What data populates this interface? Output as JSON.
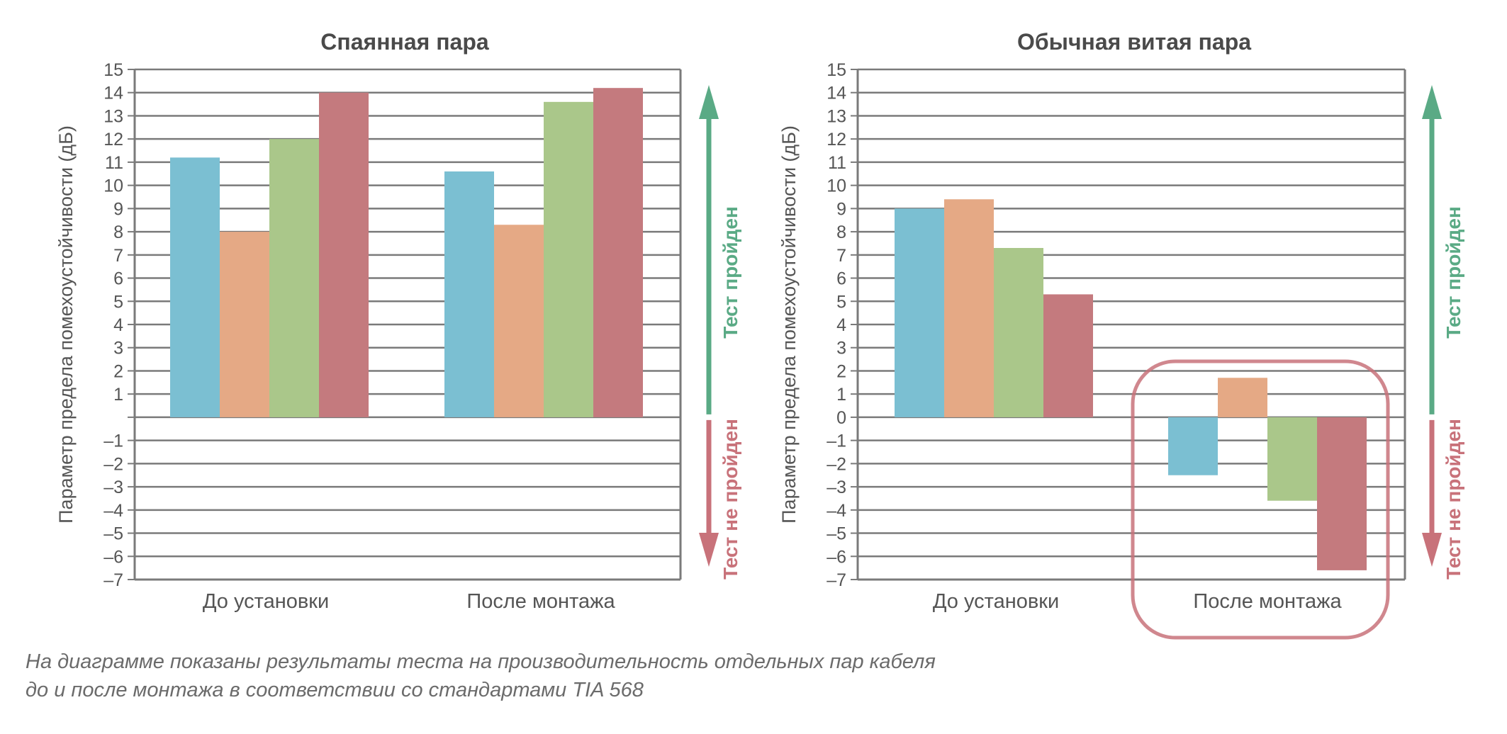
{
  "chart_data": [
    {
      "type": "bar",
      "title": "Спаянная пара",
      "ylabel": "Параметр предела помехоустойчивости (дБ)",
      "categories": [
        "До установки",
        "После монтажа"
      ],
      "ylim": [
        -7,
        15
      ],
      "yticks": [
        15,
        14,
        13,
        12,
        11,
        10,
        9,
        8,
        7,
        6,
        5,
        4,
        3,
        2,
        1,
        "",
        "–1",
        "–2",
        "–3",
        "–4",
        "–5",
        "–6",
        "–7"
      ],
      "grid": true,
      "series": [
        {
          "color": "#7bbfd2",
          "values": [
            11.2,
            10.6
          ]
        },
        {
          "color": "#e5a985",
          "values": [
            8.0,
            8.3
          ]
        },
        {
          "color": "#aac78a",
          "values": [
            12.0,
            13.6
          ]
        },
        {
          "color": "#c47a7e",
          "values": [
            14.0,
            14.2
          ]
        }
      ],
      "pass_label": "Тест пройден",
      "fail_label": "Тест не пройден"
    },
    {
      "type": "bar",
      "title": "Обычная витая пара",
      "ylabel": "Параметр предела помехоустойчивости (дБ)",
      "categories": [
        "До установки",
        "После монтажа"
      ],
      "ylim": [
        -7,
        15
      ],
      "yticks": [
        15,
        14,
        13,
        12,
        11,
        10,
        9,
        8,
        7,
        6,
        5,
        4,
        3,
        2,
        1,
        0,
        "–1",
        "–2",
        "–3",
        "–4",
        "–5",
        "–6",
        "–7"
      ],
      "grid": true,
      "series": [
        {
          "color": "#7bbfd2",
          "values": [
            9.0,
            -2.5
          ]
        },
        {
          "color": "#e5a985",
          "values": [
            9.4,
            1.7
          ]
        },
        {
          "color": "#aac78a",
          "values": [
            7.3,
            -3.6
          ]
        },
        {
          "color": "#c47a7e",
          "values": [
            5.3,
            -6.6
          ]
        }
      ],
      "highlight_category": "После монтажа",
      "pass_label": "Тест пройден",
      "fail_label": "Тест не пройден"
    }
  ],
  "caption": {
    "line1": "На диаграмме показаны результаты теста на производительность отдельных пар кабеля",
    "line2": "до и после монтажа в соответствии со стандартами TIA 568"
  },
  "colors": {
    "pass": "#5aaa85",
    "fail": "#c8727a",
    "grid": "#7a7a7a",
    "text": "#555555"
  }
}
